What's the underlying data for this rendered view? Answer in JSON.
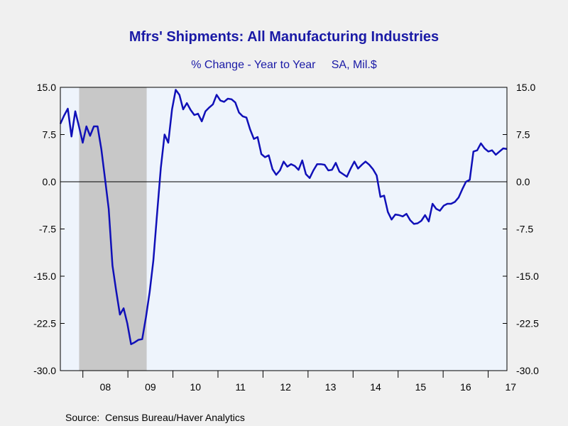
{
  "chart_data": {
    "type": "line",
    "title": "Mfrs' Shipments: All Manufacturing Industries",
    "subtitle": "% Change - Year to Year     SA, Mil.$",
    "source": "Source:  Census Bureau/Haver Analytics",
    "ylim": [
      -30,
      15
    ],
    "y_ticks": [
      15.0,
      7.5,
      0.0,
      -7.5,
      -15.0,
      -22.5,
      -30.0
    ],
    "y_tick_labels": [
      "15.0",
      "7.5",
      "0.0",
      "-7.5",
      "-15.0",
      "-22.5",
      "-30.0"
    ],
    "x_labels": [
      "08",
      "09",
      "10",
      "11",
      "12",
      "13",
      "14",
      "15",
      "16",
      "17"
    ],
    "x_start": "2007-07",
    "x_end": "2017-06",
    "recession": [
      "2007-12",
      "2009-06"
    ],
    "colors": {
      "line": "#1010b8",
      "plot_bg": "#eef4fc",
      "recession": "#c8c8c8",
      "title": "#1a1aa6"
    },
    "series": [
      {
        "values": [
          9.2,
          10.5,
          11.6,
          7.2,
          11.2,
          8.8,
          6.2,
          8.8,
          7.3,
          8.8,
          8.8,
          5.2,
          0.5,
          -4.3,
          -13.3,
          -17.3,
          -21.1,
          -20.1,
          -22.5,
          -25.8,
          -25.5,
          -25.1,
          -25.0,
          -21.5,
          -17.5,
          -12.5,
          -5.0,
          2.2,
          7.5,
          6.2,
          11.5,
          14.6,
          13.8,
          11.5,
          12.5,
          11.4,
          10.6,
          10.8,
          9.6,
          11.2,
          11.8,
          12.3,
          13.8,
          12.9,
          12.7,
          13.2,
          13.1,
          12.6,
          11.0,
          10.4,
          10.2,
          8.3,
          6.8,
          7.1,
          4.4,
          3.9,
          4.2,
          2.0,
          1.1,
          1.8,
          3.2,
          2.4,
          2.8,
          2.5,
          1.9,
          3.4,
          1.2,
          0.6,
          1.8,
          2.8,
          2.8,
          2.7,
          1.8,
          1.9,
          3.0,
          1.6,
          1.2,
          0.8,
          2.1,
          3.2,
          2.1,
          2.7,
          3.2,
          2.7,
          2.0,
          1.0,
          -2.4,
          -2.2,
          -4.8,
          -6.0,
          -5.2,
          -5.3,
          -5.5,
          -5.1,
          -6.1,
          -6.7,
          -6.6,
          -6.2,
          -5.3,
          -6.3,
          -3.5,
          -4.3,
          -4.6,
          -3.8,
          -3.5,
          -3.5,
          -3.2,
          -2.5,
          -1.2,
          0.0,
          0.3,
          4.8,
          5.0,
          6.1,
          5.3,
          4.8,
          5.0,
          4.3,
          4.8,
          5.3,
          5.2
        ]
      }
    ]
  }
}
